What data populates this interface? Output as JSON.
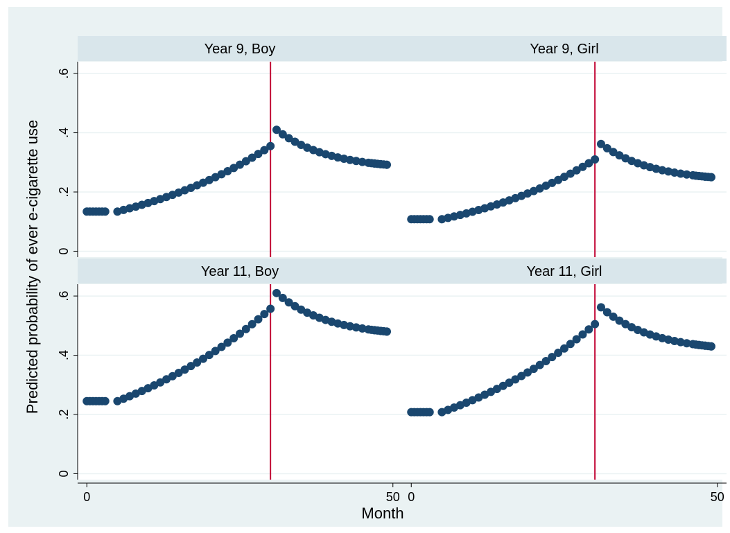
{
  "colors": {
    "outer_background": "#eaf2f3",
    "plot_background": "#ffffff",
    "strip_background": "#d9e6eb",
    "gridline": "#eaf2f3",
    "marker": "#1a476f",
    "reference_line": "#c10534"
  },
  "chart_data": {
    "type": "scatter",
    "ylabel": "Predicted probability of ever e-cigarette use",
    "xlabel": "Month",
    "x_ticks": [
      0,
      50
    ],
    "y_ticks": [
      0,
      0.2,
      0.4,
      0.6
    ],
    "y_tick_labels": [
      "0",
      ".2",
      ".4",
      ".6"
    ],
    "x_tick_labels": [
      "0",
      "50"
    ],
    "xlim": [
      -1.5,
      51.5
    ],
    "ylim": [
      -0.02,
      0.64
    ],
    "grid": true,
    "reference_line_x": 30,
    "panels": [
      {
        "title": "Year 9, Boy",
        "pre": {
          "p0": 0.134,
          "p_break": 0.355,
          "x_end": 30
        },
        "post": {
          "start": 0.41,
          "end": 0.292,
          "x_start": 31,
          "x_end": 49
        },
        "flat_start": 0.134
      },
      {
        "title": "Year 9, Girl",
        "pre": {
          "p0": 0.108,
          "p_break": 0.31,
          "x_end": 30
        },
        "post": {
          "start": 0.362,
          "end": 0.25,
          "x_start": 31,
          "x_end": 49
        },
        "flat_start": 0.108
      },
      {
        "title": "Year 11, Boy",
        "pre": {
          "p0": 0.245,
          "p_break": 0.557,
          "x_end": 30
        },
        "post": {
          "start": 0.61,
          "end": 0.48,
          "x_start": 31,
          "x_end": 49
        },
        "flat_start": 0.245
      },
      {
        "title": "Year 11, Girl",
        "pre": {
          "p0": 0.208,
          "p_break": 0.505,
          "x_end": 30
        },
        "post": {
          "start": 0.562,
          "end": 0.43,
          "x_start": 31,
          "x_end": 49
        },
        "flat_start": 0.208
      }
    ]
  }
}
